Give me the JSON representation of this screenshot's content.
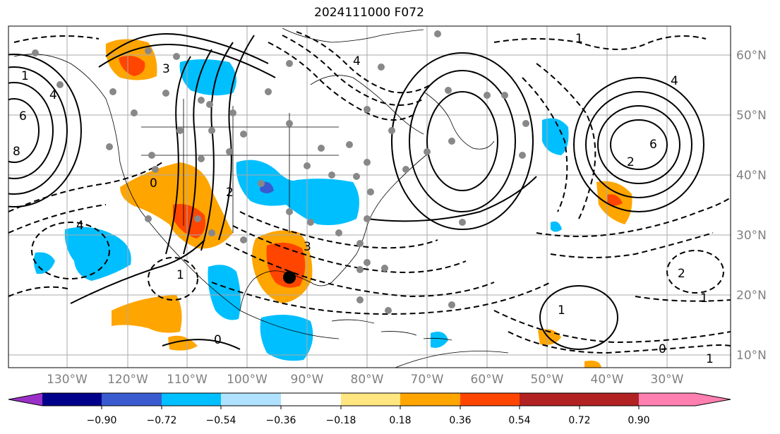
{
  "title": "2024111000 F072",
  "map": {
    "lon_labels": [
      "130°W",
      "120°W",
      "110°W",
      "100°W",
      "90°W",
      "80°W",
      "70°W",
      "60°W",
      "50°W",
      "40°W",
      "30°W"
    ],
    "lat_labels": [
      "60°N",
      "50°N",
      "40°N",
      "30°N",
      "20°N",
      "10°N"
    ],
    "contour_labels": [
      "6",
      "8",
      "4",
      "1",
      "3",
      "0",
      "2",
      "1",
      "1",
      "0",
      "1",
      "4",
      "6",
      "4",
      "2",
      "3",
      "2",
      "1",
      "0",
      "1",
      "4"
    ],
    "marker": "storm-center-dot"
  },
  "colorbar": {
    "ticks": [
      "−0.90",
      "−0.72",
      "−0.54",
      "−0.36",
      "−0.18",
      "0.18",
      "0.36",
      "0.54",
      "0.72",
      "0.90"
    ],
    "colors": [
      "#9b30c8",
      "#00008b",
      "#3a5bd0",
      "#00bfff",
      "#b0e2ff",
      "#ffffff",
      "#ffe680",
      "#ffa500",
      "#ff4500",
      "#b22222",
      "#ff7fb0"
    ]
  }
}
